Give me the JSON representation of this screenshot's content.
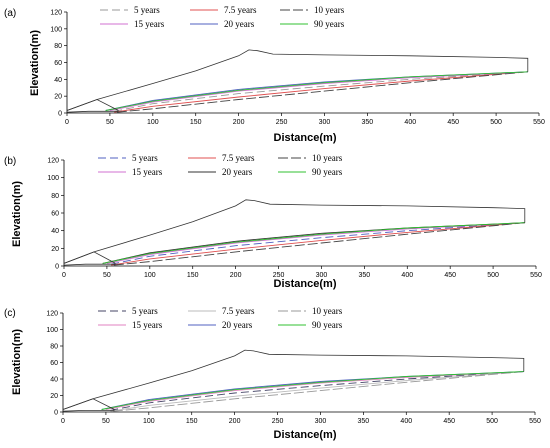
{
  "chart_data": [
    {
      "type": "line",
      "panel_label": "(a)",
      "xlabel": "Distance(m)",
      "ylabel": "Elevation(m)",
      "xlim": [
        0,
        550
      ],
      "ylim": [
        0,
        120
      ],
      "xticks": [
        0,
        50,
        100,
        150,
        200,
        250,
        300,
        350,
        400,
        450,
        500,
        550
      ],
      "yticks": [
        0,
        20,
        40,
        60,
        80,
        100,
        120
      ],
      "legend_position": "top",
      "series": [
        {
          "name": "5 years",
          "color": "#9a9a9a",
          "dash": "8,4",
          "x": [
            55,
            100,
            200,
            300,
            400,
            537
          ],
          "y": [
            2,
            11,
            23,
            32,
            40,
            49
          ]
        },
        {
          "name": "7.5 years",
          "color": "#e05050",
          "dash": "",
          "x": [
            55,
            100,
            200,
            300,
            400,
            537
          ],
          "y": [
            1,
            8,
            19,
            29,
            38,
            49
          ]
        },
        {
          "name": "10 years",
          "color": "#444444",
          "dash": "10,3",
          "x": [
            58,
            100,
            200,
            300,
            400,
            537
          ],
          "y": [
            1,
            5,
            16,
            26,
            36,
            49
          ]
        },
        {
          "name": "15 years",
          "color": "#d070d0",
          "dash": "",
          "x": [
            50,
            100,
            200,
            300,
            400,
            537
          ],
          "y": [
            3,
            13,
            26,
            35,
            42,
            49
          ]
        },
        {
          "name": "20 years",
          "color": "#5060c0",
          "dash": "",
          "x": [
            45,
            100,
            200,
            300,
            400,
            537
          ],
          "y": [
            3,
            15,
            28,
            37,
            43,
            49
          ]
        },
        {
          "name": "90 years",
          "color": "#30c030",
          "dash": "",
          "x": [
            45,
            100,
            200,
            300,
            400,
            537
          ],
          "y": [
            3,
            14,
            27,
            36,
            43,
            49
          ]
        },
        {
          "name": "",
          "color": "#333333",
          "dash": "",
          "x": [
            0,
            35,
            100,
            150,
            200,
            212,
            222,
            240,
            300,
            400,
            500,
            537,
            537
          ],
          "y": [
            3,
            16,
            35,
            50,
            68,
            75,
            74,
            70,
            69,
            68,
            66,
            65,
            49
          ]
        },
        {
          "name": "",
          "color": "#333333",
          "dash": "",
          "x": [
            0,
            35,
            60
          ],
          "y": [
            3,
            16,
            3
          ]
        },
        {
          "name": "",
          "color": "#333333",
          "dash": "",
          "x": [
            0,
            25,
            60
          ],
          "y": [
            1,
            2,
            2
          ]
        }
      ]
    },
    {
      "type": "line",
      "panel_label": "(b)",
      "xlabel": "Distance(m)",
      "ylabel": "Elevation(m)",
      "xlim": [
        0,
        550
      ],
      "ylim": [
        0,
        120
      ],
      "xticks": [
        0,
        50,
        100,
        150,
        200,
        250,
        300,
        350,
        400,
        450,
        500,
        550
      ],
      "yticks": [
        0,
        20,
        40,
        60,
        80,
        100,
        120
      ],
      "legend_position": "top",
      "series": [
        {
          "name": "5 years",
          "color": "#5060c0",
          "dash": "8,4",
          "x": [
            55,
            100,
            200,
            300,
            400,
            537
          ],
          "y": [
            2,
            11,
            23,
            32,
            40,
            49
          ]
        },
        {
          "name": "7.5 years",
          "color": "#e05050",
          "dash": "",
          "x": [
            55,
            100,
            200,
            300,
            400,
            537
          ],
          "y": [
            1,
            8,
            19,
            29,
            38,
            49
          ]
        },
        {
          "name": "10 years",
          "color": "#444444",
          "dash": "10,3",
          "x": [
            58,
            100,
            200,
            300,
            400,
            537
          ],
          "y": [
            1,
            5,
            16,
            26,
            36,
            49
          ]
        },
        {
          "name": "15 years",
          "color": "#d070d0",
          "dash": "",
          "x": [
            50,
            100,
            200,
            300,
            400,
            537
          ],
          "y": [
            3,
            13,
            26,
            35,
            42,
            49
          ]
        },
        {
          "name": "20 years",
          "color": "#333333",
          "dash": "",
          "x": [
            45,
            100,
            200,
            300,
            400,
            537
          ],
          "y": [
            3,
            15,
            28,
            37,
            43,
            49
          ]
        },
        {
          "name": "90 years",
          "color": "#30c030",
          "dash": "",
          "x": [
            45,
            100,
            200,
            300,
            400,
            537
          ],
          "y": [
            3,
            14,
            27,
            36,
            43,
            49
          ]
        },
        {
          "name": "",
          "color": "#333333",
          "dash": "",
          "x": [
            0,
            35,
            100,
            150,
            200,
            212,
            222,
            240,
            300,
            400,
            500,
            537,
            537
          ],
          "y": [
            3,
            16,
            35,
            50,
            68,
            75,
            74,
            70,
            69,
            68,
            66,
            65,
            49
          ]
        },
        {
          "name": "",
          "color": "#333333",
          "dash": "",
          "x": [
            0,
            35,
            60
          ],
          "y": [
            3,
            16,
            3
          ]
        },
        {
          "name": "",
          "color": "#333333",
          "dash": "",
          "x": [
            0,
            25,
            60
          ],
          "y": [
            1,
            2,
            2
          ]
        }
      ]
    },
    {
      "type": "line",
      "panel_label": "(c)",
      "xlabel": "Distance(m)",
      "ylabel": "Elevation(m)",
      "xlim": [
        0,
        550
      ],
      "ylim": [
        0,
        120
      ],
      "xticks": [
        0,
        50,
        100,
        150,
        200,
        250,
        300,
        350,
        400,
        450,
        500,
        550
      ],
      "yticks": [
        0,
        20,
        40,
        60,
        80,
        100,
        120
      ],
      "legend_position": "top",
      "series": [
        {
          "name": "5 years",
          "color": "#444466",
          "dash": "8,4",
          "x": [
            55,
            100,
            200,
            300,
            400,
            537
          ],
          "y": [
            2,
            11,
            23,
            32,
            40,
            49
          ]
        },
        {
          "name": "7.5 years",
          "color": "#bbbbbb",
          "dash": "",
          "x": [
            55,
            100,
            200,
            300,
            400,
            537
          ],
          "y": [
            1,
            8,
            19,
            29,
            38,
            49
          ]
        },
        {
          "name": "10 years",
          "color": "#999999",
          "dash": "10,3",
          "x": [
            58,
            100,
            200,
            300,
            400,
            537
          ],
          "y": [
            1,
            5,
            16,
            26,
            36,
            49
          ]
        },
        {
          "name": "15 years",
          "color": "#e080c0",
          "dash": "",
          "x": [
            50,
            100,
            200,
            300,
            400,
            537
          ],
          "y": [
            3,
            13,
            26,
            35,
            42,
            49
          ]
        },
        {
          "name": "20 years",
          "color": "#5060c0",
          "dash": "",
          "x": [
            45,
            100,
            200,
            300,
            400,
            537
          ],
          "y": [
            3,
            15,
            28,
            37,
            43,
            49
          ]
        },
        {
          "name": "90 years",
          "color": "#30c030",
          "dash": "",
          "x": [
            45,
            100,
            200,
            300,
            400,
            537
          ],
          "y": [
            3,
            14,
            27,
            36,
            43,
            49
          ]
        },
        {
          "name": "",
          "color": "#333333",
          "dash": "",
          "x": [
            0,
            35,
            100,
            150,
            200,
            212,
            222,
            240,
            300,
            400,
            500,
            537,
            537
          ],
          "y": [
            3,
            16,
            35,
            50,
            68,
            75,
            74,
            70,
            69,
            68,
            66,
            65,
            49
          ]
        },
        {
          "name": "",
          "color": "#333333",
          "dash": "",
          "x": [
            0,
            35,
            60
          ],
          "y": [
            3,
            16,
            3
          ]
        },
        {
          "name": "",
          "color": "#333333",
          "dash": "",
          "x": [
            0,
            25,
            60
          ],
          "y": [
            1,
            2,
            2
          ]
        }
      ]
    }
  ]
}
